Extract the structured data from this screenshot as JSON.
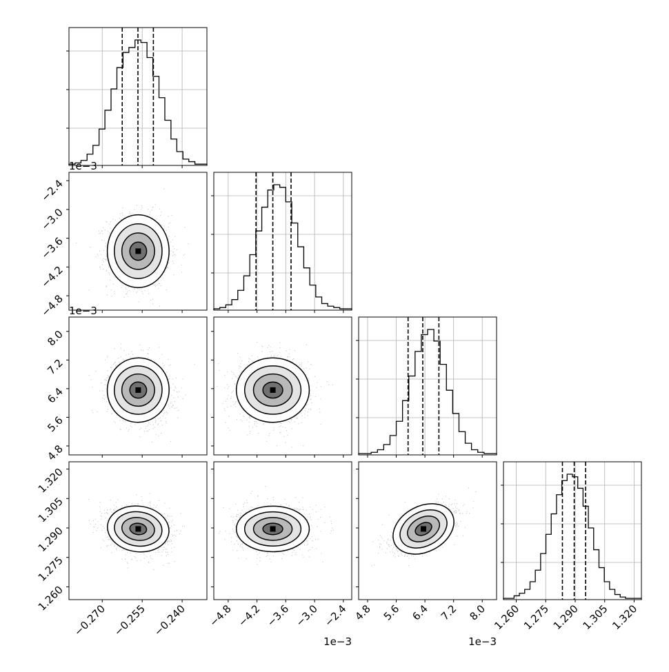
{
  "chart_data": [
    {
      "type": "histogram",
      "parameter": "p0",
      "bins": [
        -0.2825,
        -0.2802,
        -0.278,
        -0.2757,
        -0.2735,
        -0.2712,
        -0.269,
        -0.2667,
        -0.2645,
        -0.2622,
        -0.26,
        -0.2577,
        -0.2555,
        -0.2532,
        -0.251,
        -0.2487,
        -0.2465,
        -0.2442,
        -0.242,
        -0.2397,
        -0.2375,
        -0.2352,
        -0.233,
        -0.2307
      ],
      "density": [
        0.01,
        0.02,
        0.04,
        0.09,
        0.16,
        0.29,
        0.44,
        0.61,
        0.78,
        0.9,
        0.94,
        1.0,
        0.98,
        0.86,
        0.71,
        0.54,
        0.36,
        0.21,
        0.11,
        0.05,
        0.03,
        0.01,
        0.01
      ],
      "quantile_lines": [
        -0.2625,
        -0.2566,
        -0.2508
      ],
      "xlim": [
        -0.2825,
        -0.2307
      ],
      "xticks": [
        "-0.270",
        "-0.255",
        "-0.240"
      ],
      "grid": true
    },
    {
      "type": "histogram",
      "parameter": "p1",
      "x_offset_label": "1e−3",
      "bins": [
        -5.1,
        -4.975,
        -4.85,
        -4.725,
        -4.6,
        -4.475,
        -4.35,
        -4.225,
        -4.1,
        -3.975,
        -3.85,
        -3.725,
        -3.6,
        -3.475,
        -3.35,
        -3.225,
        -3.1,
        -2.975,
        -2.85,
        -2.725,
        -2.6,
        -2.475,
        -2.35,
        -2.225
      ],
      "density": [
        0.01,
        0.02,
        0.04,
        0.08,
        0.15,
        0.26,
        0.42,
        0.6,
        0.78,
        0.91,
        0.95,
        0.93,
        0.82,
        0.66,
        0.48,
        0.32,
        0.19,
        0.1,
        0.05,
        0.03,
        0.02,
        0.01,
        0.01
      ],
      "quantile_lines": [
        -4.22,
        -3.87,
        -3.49
      ],
      "xlim": [
        -5.1,
        -2.225
      ],
      "xticks": [
        "-4.8",
        "-4.2",
        "-3.6",
        "-3.0",
        "-2.4"
      ],
      "grid": true
    },
    {
      "type": "histogram",
      "parameter": "p2",
      "x_offset_label": "1e−3",
      "bins": [
        4.55,
        4.725,
        4.9,
        5.075,
        5.25,
        5.425,
        5.6,
        5.775,
        5.95,
        6.125,
        6.3,
        6.475,
        6.65,
        6.825,
        7.0,
        7.175,
        7.35,
        7.525,
        7.7,
        7.875,
        8.05,
        8.225,
        8.4
      ],
      "density": [
        0.01,
        0.01,
        0.02,
        0.04,
        0.08,
        0.15,
        0.26,
        0.42,
        0.61,
        0.8,
        0.93,
        0.97,
        0.88,
        0.7,
        0.5,
        0.32,
        0.18,
        0.09,
        0.04,
        0.02,
        0.01,
        0.01
      ],
      "quantile_lines": [
        5.93,
        6.34,
        6.79
      ],
      "xlim": [
        4.55,
        8.4
      ],
      "xticks": [
        "4.8",
        "5.6",
        "6.4",
        "7.2",
        "8.0"
      ],
      "grid": true
    },
    {
      "type": "histogram",
      "parameter": "p3",
      "bins": [
        1.2535,
        1.2562,
        1.2589,
        1.2616,
        1.2643,
        1.267,
        1.2697,
        1.2724,
        1.2751,
        1.2778,
        1.2805,
        1.2832,
        1.2859,
        1.2886,
        1.2913,
        1.294,
        1.2967,
        1.2994,
        1.3021,
        1.3048,
        1.3075,
        1.3102,
        1.3129,
        1.3156,
        1.3183,
        1.321,
        1.3237
      ],
      "density": [
        0.01,
        0.01,
        0.03,
        0.05,
        0.08,
        0.14,
        0.23,
        0.36,
        0.51,
        0.67,
        0.82,
        0.93,
        0.98,
        0.96,
        0.87,
        0.73,
        0.56,
        0.39,
        0.25,
        0.14,
        0.08,
        0.04,
        0.02,
        0.01,
        0.01,
        0.01
      ],
      "quantile_lines": [
        1.2835,
        1.2895,
        1.2953
      ],
      "xlim": [
        1.2535,
        1.3237
      ],
      "xticks": [
        "1.260",
        "1.275",
        "1.290",
        "1.305",
        "1.320"
      ],
      "grid": true
    },
    {
      "type": "scatter",
      "x_parameter": "p0",
      "y_parameter": "p1",
      "x_center": -0.2565,
      "y_center": -3.87,
      "x_sd": 0.0058,
      "y_sd": 0.38,
      "correlation": 0.0,
      "contour_levels": [
        "0.5",
        "1.0",
        "1.5",
        "2.0"
      ],
      "yticks": [
        "-2.4",
        "-3.0",
        "-3.6",
        "-4.2",
        "-4.8"
      ],
      "y_offset_label": "1e−3"
    },
    {
      "type": "scatter",
      "x_parameter": "p0",
      "y_parameter": "p2",
      "x_center": -0.2565,
      "y_center": 6.36,
      "x_sd": 0.0058,
      "y_sd": 0.45,
      "correlation": -0.15,
      "contour_levels": [
        "0.5",
        "1.0",
        "1.5",
        "2.0"
      ],
      "yticks": [
        "8.0",
        "7.2",
        "6.4",
        "5.6",
        "4.8"
      ],
      "y_offset_label": "1e−3"
    },
    {
      "type": "scatter",
      "x_parameter": "p1",
      "y_parameter": "p2",
      "x_center": -3.87,
      "y_center": 6.36,
      "x_sd": 0.38,
      "y_sd": 0.45,
      "correlation": 0.0
    },
    {
      "type": "scatter",
      "x_parameter": "p0",
      "y_parameter": "p3",
      "x_center": -0.2565,
      "y_center": 1.2895,
      "x_sd": 0.0058,
      "y_sd": 0.0058,
      "correlation": -0.15,
      "yticks": [
        "1.320",
        "1.305",
        "1.290",
        "1.275",
        "1.260"
      ]
    },
    {
      "type": "scatter",
      "x_parameter": "p1",
      "y_parameter": "p3",
      "x_center": -3.87,
      "y_center": 1.2895,
      "x_sd": 0.38,
      "y_sd": 0.0058,
      "correlation": 0.0
    },
    {
      "type": "scatter",
      "x_parameter": "p2",
      "y_parameter": "p3",
      "x_center": 6.36,
      "y_center": 1.2895,
      "x_sd": 0.45,
      "y_sd": 0.0058,
      "correlation": 0.6
    }
  ]
}
